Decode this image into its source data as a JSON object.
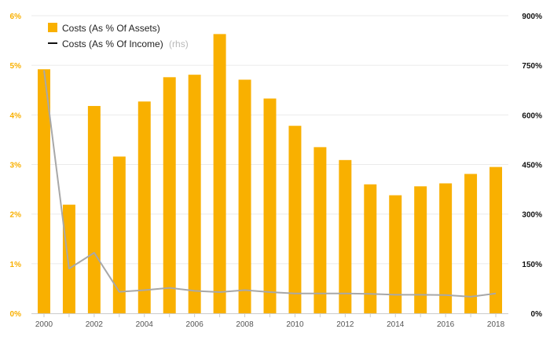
{
  "chart_data": {
    "type": "bar",
    "categories": [
      "2000",
      "2001",
      "2002",
      "2003",
      "2004",
      "2005",
      "2006",
      "2007",
      "2008",
      "2009",
      "2010",
      "2011",
      "2012",
      "2013",
      "2014",
      "2015",
      "2016",
      "2017",
      "2018"
    ],
    "x_tick_labels": [
      "2000",
      "2002",
      "2004",
      "2006",
      "2008",
      "2010",
      "2012",
      "2014",
      "2016",
      "2018"
    ],
    "series": [
      {
        "name": "Costs (As % Of Assets)",
        "type": "bar",
        "axis": "left",
        "color": "#f9b000",
        "values": [
          4.92,
          2.19,
          4.18,
          3.16,
          4.27,
          4.76,
          4.81,
          5.63,
          4.71,
          4.33,
          3.78,
          3.35,
          3.09,
          2.6,
          2.38,
          2.56,
          2.62,
          2.81,
          2.95
        ]
      },
      {
        "name": "Costs (As % Of Income)",
        "name_suffix": "(rhs)",
        "type": "line",
        "axis": "right",
        "color": "#a8a8a8",
        "values": [
          735,
          135,
          183,
          65,
          70,
          77,
          68,
          64,
          70,
          64,
          60,
          60,
          60,
          59,
          56,
          56,
          55,
          50,
          60
        ]
      }
    ],
    "y_left": {
      "min": 0,
      "max": 6,
      "ticks": [
        0,
        1,
        2,
        3,
        4,
        5,
        6
      ],
      "tick_labels": [
        "0%",
        "1%",
        "2%",
        "3%",
        "4%",
        "5%",
        "6%"
      ]
    },
    "y_right": {
      "min": 0,
      "max": 900,
      "ticks": [
        0,
        150,
        300,
        450,
        600,
        750,
        900
      ],
      "tick_labels": [
        "0%",
        "150%",
        "300%",
        "450%",
        "600%",
        "750%",
        "900%"
      ]
    },
    "grid": true,
    "legend_position": "top-left"
  }
}
